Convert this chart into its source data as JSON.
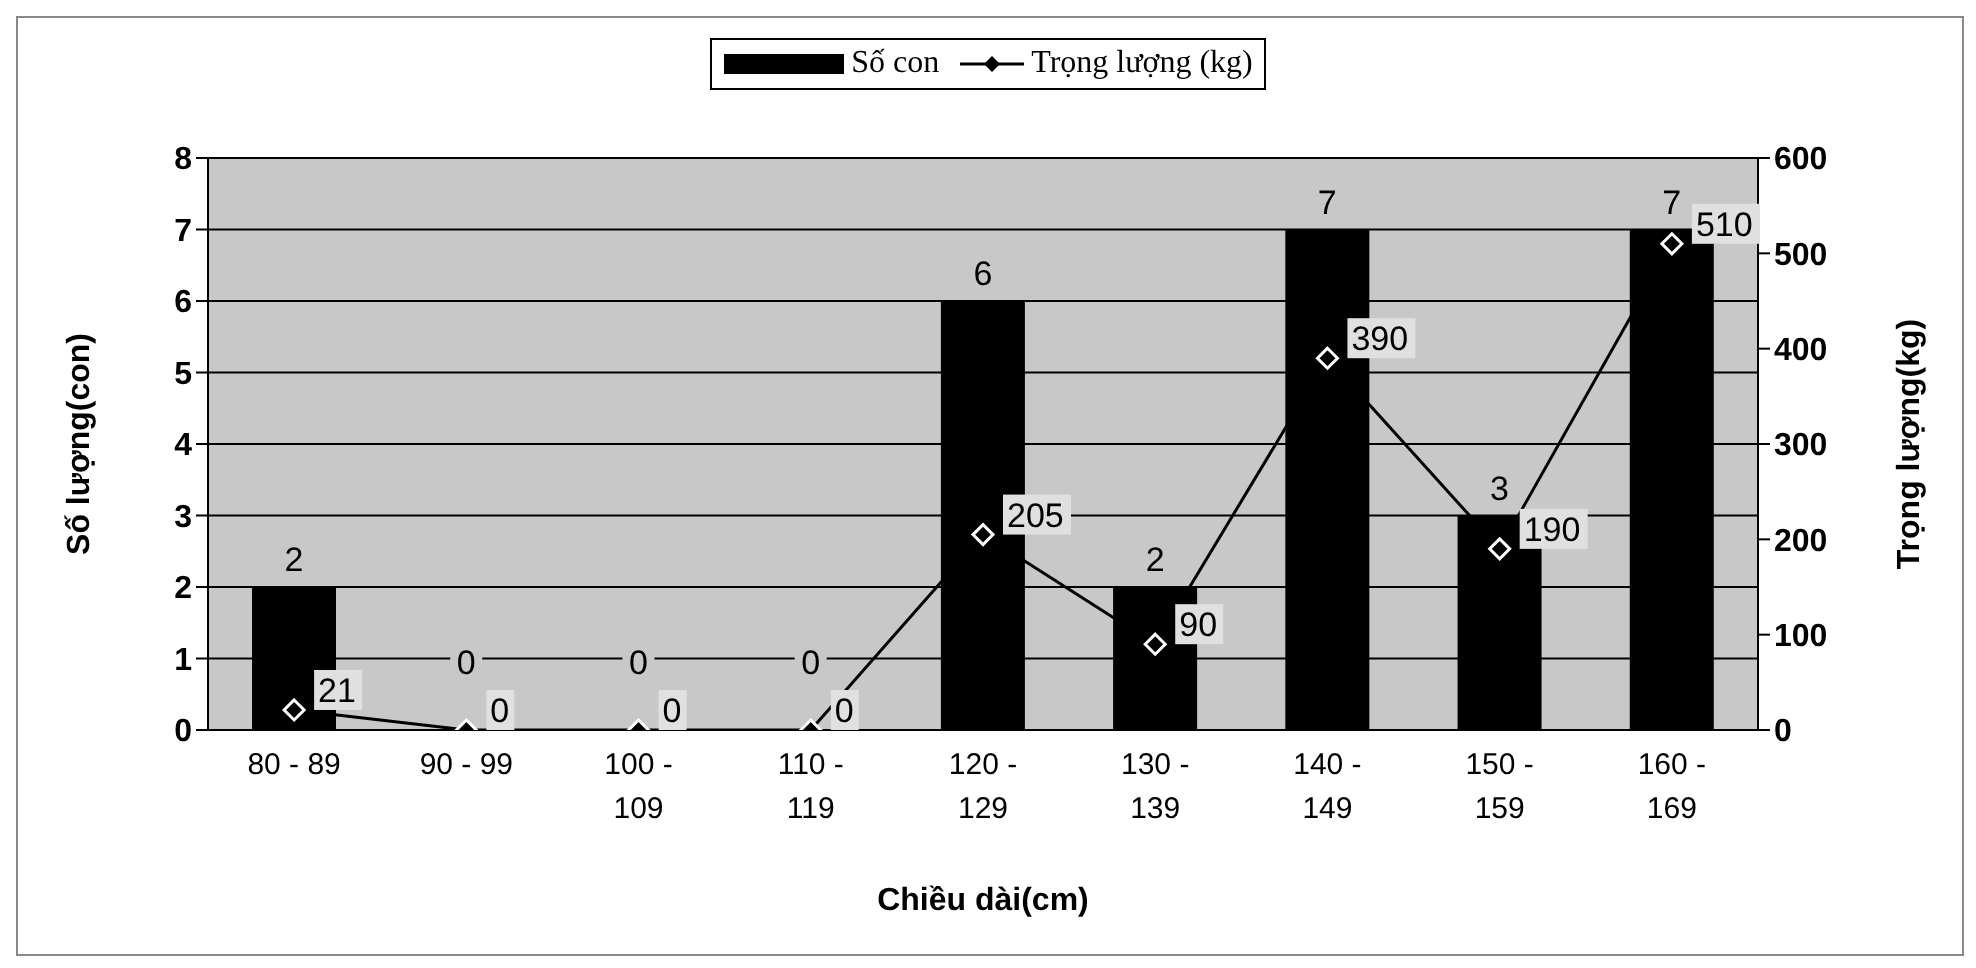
{
  "chart_data": {
    "type": "bar",
    "xlabel": "Chiều dài(cm)",
    "ylabel": "Số lượng(con)",
    "y2label": "Trọng lượng(kg)",
    "categories": [
      "80 - 89",
      "90 - 99",
      "100 - 109",
      "110 - 119",
      "120 - 129",
      "130 - 139",
      "140 - 149",
      "150 - 159",
      "160 - 169"
    ],
    "series": [
      {
        "name": "Số con",
        "color": "#000000",
        "values": [
          2,
          0,
          0,
          0,
          6,
          2,
          7,
          3,
          7
        ]
      },
      {
        "name": "Trọng lượng (kg)",
        "type": "line",
        "axis": "y2",
        "color": "#000000",
        "values": [
          21,
          0,
          0,
          0,
          205,
          90,
          390,
          190,
          510
        ]
      }
    ],
    "ylim": [
      0,
      8
    ],
    "yticks": [
      0,
      1,
      2,
      3,
      4,
      5,
      6,
      7,
      8
    ],
    "y2lim": [
      0,
      600
    ],
    "y2ticks": [
      0,
      100,
      200,
      300,
      400,
      500,
      600
    ],
    "grid": "y",
    "legend": "top",
    "marker": "diamond",
    "line_style": "solid",
    "data_labels": true
  }
}
